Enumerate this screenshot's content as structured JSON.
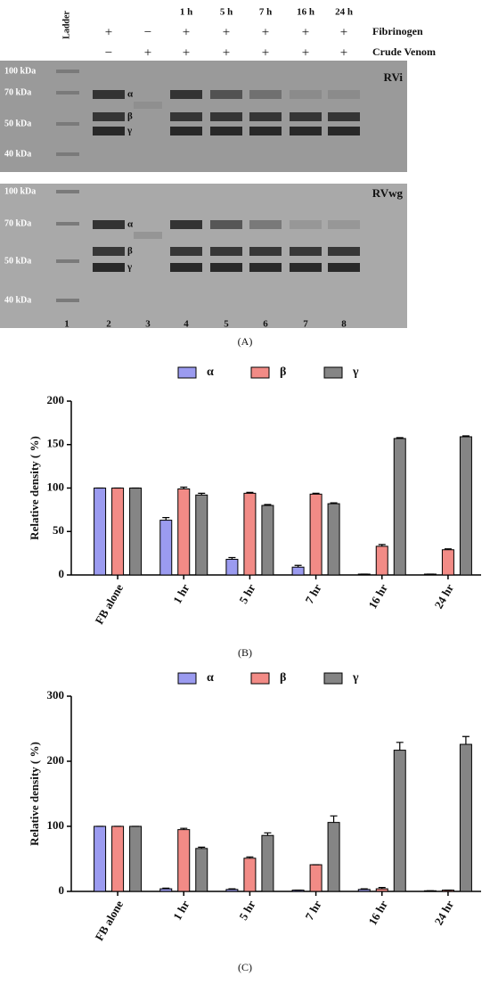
{
  "gel": {
    "ladder_label": "Ladder",
    "time_labels": [
      "1 h",
      "5 h",
      "7 h",
      "16 h",
      "24 h"
    ],
    "row_labels": [
      "Fibrinogen",
      "Crude Venom"
    ],
    "fibrinogen_signs": [
      "+",
      "−",
      "+",
      "+",
      "+",
      "+",
      "+"
    ],
    "venom_signs": [
      "−",
      "+",
      "+",
      "+",
      "+",
      "+",
      "+"
    ],
    "panels": [
      {
        "name": "RVi",
        "markers": [
          "100 kDa",
          "70 kDa",
          "50 kDa",
          "40 kDa"
        ],
        "chains": [
          "α",
          "β",
          "γ"
        ]
      },
      {
        "name": "RVwg",
        "markers": [
          "100 kDa",
          "70 kDa",
          "50 kDa",
          "40 kDa"
        ],
        "chains": [
          "α",
          "β",
          "γ"
        ]
      }
    ],
    "lane_numbers": [
      "1",
      "2",
      "3",
      "4",
      "5",
      "6",
      "7",
      "8"
    ],
    "caption": "(A)"
  },
  "chart_data": [
    {
      "type": "bar",
      "caption": "(B)",
      "y_label": "Relative density ( %)",
      "categories": [
        "FB alone",
        "1 hr",
        "5 hr",
        "7 hr",
        "16 hr",
        "24 hr"
      ],
      "series": [
        {
          "name": "α",
          "color": "#9b9bf0",
          "values": [
            100,
            63,
            18,
            9,
            1,
            1
          ],
          "errors": [
            0,
            3,
            2,
            2,
            0,
            0
          ]
        },
        {
          "name": "β",
          "color": "#f28b86",
          "values": [
            100,
            99,
            94,
            93,
            33,
            29
          ],
          "errors": [
            0,
            2,
            1,
            1,
            2,
            1
          ]
        },
        {
          "name": "γ",
          "color": "#858585",
          "values": [
            100,
            92,
            80,
            82,
            157,
            159
          ],
          "errors": [
            0,
            2,
            1,
            1,
            1,
            1
          ]
        }
      ],
      "ylim": [
        0,
        200
      ],
      "yticks": [
        0,
        50,
        100,
        150,
        200
      ]
    },
    {
      "type": "bar",
      "caption": "(C)",
      "y_label": "Relative density ( %)",
      "categories": [
        "FB alone",
        "1 hr",
        "5 hr",
        "7 hr",
        "16 hr",
        "24 hr"
      ],
      "series": [
        {
          "name": "α",
          "color": "#9b9bf0",
          "values": [
            100,
            4,
            3,
            2,
            3,
            1
          ],
          "errors": [
            0,
            1,
            1,
            0,
            1,
            0
          ]
        },
        {
          "name": "β",
          "color": "#f28b86",
          "values": [
            100,
            95,
            51,
            41,
            4,
            2
          ],
          "errors": [
            0,
            2,
            2,
            0,
            2,
            0
          ]
        },
        {
          "name": "γ",
          "color": "#858585",
          "values": [
            100,
            66,
            86,
            106,
            217,
            226
          ],
          "errors": [
            0,
            2,
            4,
            10,
            12,
            12
          ]
        }
      ],
      "ylim": [
        0,
        300
      ],
      "yticks": [
        0,
        100,
        200,
        300
      ]
    }
  ]
}
